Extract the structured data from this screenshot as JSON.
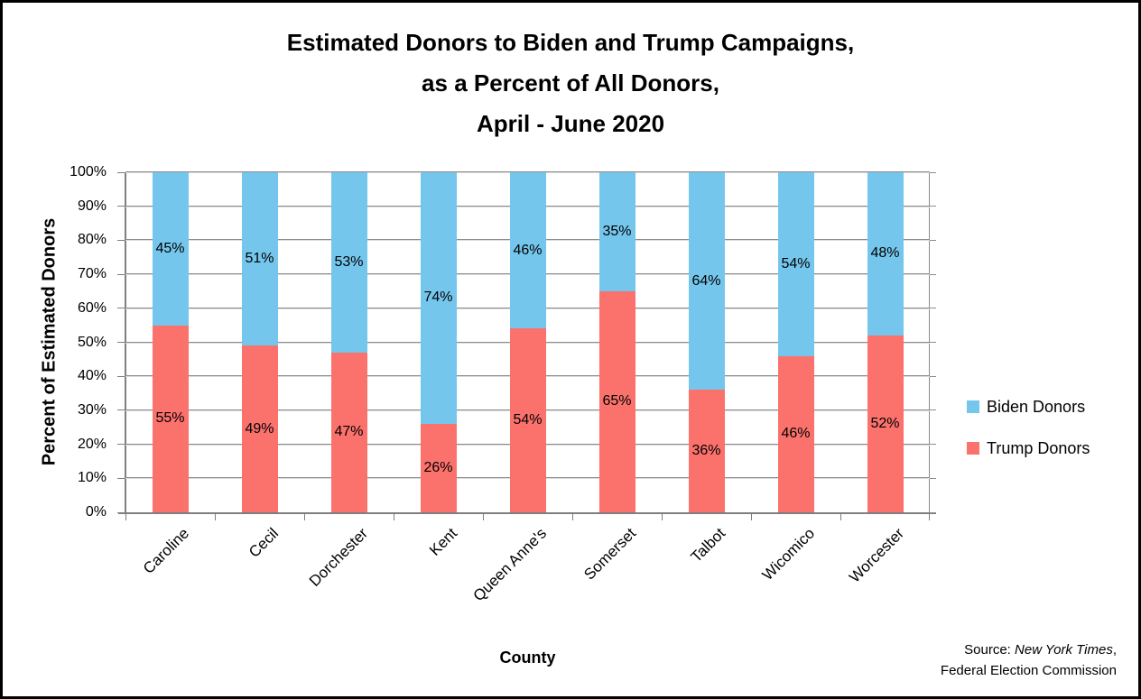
{
  "title": {
    "line1": "Estimated Donors to Biden and Trump Campaigns,",
    "line2": "as a Percent of All Donors,",
    "line3": "April - June 2020"
  },
  "chart_data": {
    "type": "bar",
    "stacked": true,
    "title": "Estimated Donors to Biden and Trump Campaigns, as a Percent of All Donors, April - June 2020",
    "categories": [
      "Caroline",
      "Cecil",
      "Dorchester",
      "Kent",
      "Queen Anne's",
      "Somerset",
      "Talbot",
      "Wicomico",
      "Worcester"
    ],
    "series": [
      {
        "name": "Trump Donors",
        "color": "#FB716C",
        "values": [
          55,
          49,
          47,
          26,
          54,
          65,
          36,
          46,
          52
        ],
        "labels": [
          "55%",
          "49%",
          "47%",
          "26%",
          "54%",
          "65%",
          "36%",
          "46%",
          "52%"
        ]
      },
      {
        "name": "Biden Donors",
        "color": "#75C6ED",
        "values": [
          45,
          51,
          53,
          74,
          46,
          35,
          64,
          54,
          48
        ],
        "labels": [
          "45%",
          "51%",
          "53%",
          "74%",
          "46%",
          "35%",
          "64%",
          "54%",
          "48%"
        ]
      }
    ],
    "xlabel": "County",
    "ylabel": "Percent of Estimated Donors",
    "ylim": [
      0,
      100
    ],
    "ytick_step": 10,
    "yticks": [
      "0%",
      "10%",
      "20%",
      "30%",
      "40%",
      "50%",
      "60%",
      "70%",
      "80%",
      "90%",
      "100%"
    ],
    "grid": true,
    "legend_position": "right",
    "data_labels": "segment midpoints"
  },
  "legend": {
    "items": [
      {
        "label": "Biden Donors",
        "color": "#75C6ED"
      },
      {
        "label": "Trump Donors",
        "color": "#FB716C"
      }
    ]
  },
  "source": {
    "prefix": "Source: ",
    "italic": "New York Times",
    "suffix": ",",
    "line2": "Federal Election Commission"
  },
  "colors": {
    "grid": "#8C8C8C",
    "axis": "#7F7F7F",
    "text": "#000000",
    "background": "#FFFFFF"
  }
}
